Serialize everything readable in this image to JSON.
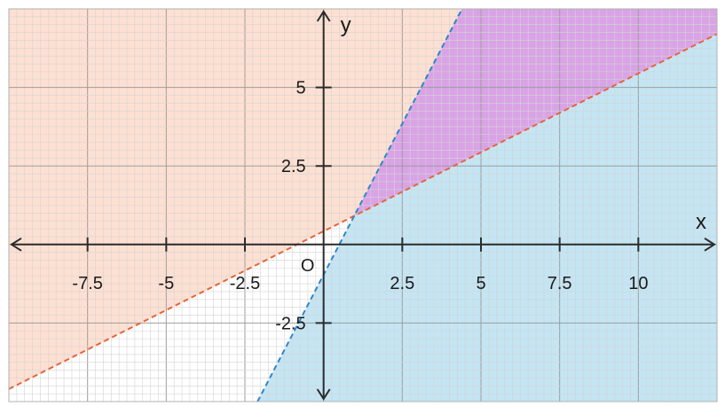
{
  "chart_data": {
    "type": "area",
    "xlabel": "x",
    "ylabel": "y",
    "origin_label": "O",
    "xlim": [
      -10,
      12.5
    ],
    "ylim": [
      -5,
      7.5
    ],
    "grid": true,
    "x_ticks": [
      {
        "value": -7.5,
        "label": "-7.5"
      },
      {
        "value": -5,
        "label": "-5"
      },
      {
        "value": -2.5,
        "label": "-2.5"
      },
      {
        "value": 2.5,
        "label": "2.5"
      },
      {
        "value": 5,
        "label": "5"
      },
      {
        "value": 7.5,
        "label": "7.5"
      },
      {
        "value": 10,
        "label": "10"
      }
    ],
    "y_ticks": [
      {
        "value": 5,
        "label": "5"
      },
      {
        "value": 2.5,
        "label": "2.5"
      },
      {
        "value": -2.5,
        "label": "-2.5"
      }
    ],
    "series": [
      {
        "values": [
          [
            -10,
            -4.6
          ],
          [
            12.5,
            6.7
          ]
        ],
        "color": "#e8643a",
        "style": "dashed",
        "shade": "above",
        "fill": "#fde0d2"
      },
      {
        "values": [
          [
            -2.1,
            -5
          ],
          [
            4.4,
            7.5
          ]
        ],
        "color": "#2e86c8",
        "style": "dashed",
        "shade": "right",
        "fill": "#c4e5f3"
      }
    ],
    "overlap_fill": "#d9a3e6",
    "colors": {
      "grid_minor": "#d4d4d4",
      "grid_major": "#9e9e9e",
      "axis": "#2b2b2b",
      "border": "#b0b0b0"
    }
  }
}
